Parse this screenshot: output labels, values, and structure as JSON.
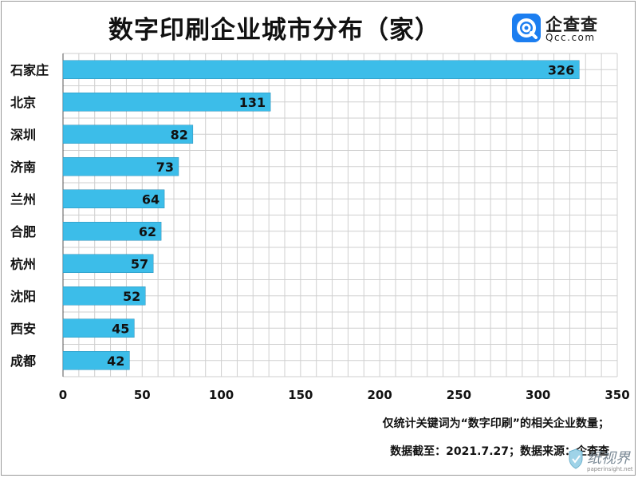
{
  "header": {
    "title": "数字印刷企业城市分布（家）",
    "brand": "企查查",
    "brand_domain": "Qcc.com"
  },
  "footer": {
    "note_line1": "仅统计关键词为“数字印刷”的相关企业数量；",
    "note_line2": "数据截至：2021.7.27；数据来源：企查查"
  },
  "watermark": {
    "text": "纸视界",
    "url": "paperinsight.net"
  },
  "colors": {
    "bar": "#3cbde9",
    "bar_stroke": "#2a8fb8",
    "grid": "#cfcfcf",
    "text": "#111111",
    "brand": "#1c7ef0"
  },
  "chart_data": {
    "type": "bar",
    "orientation": "horizontal",
    "categories": [
      "石家庄",
      "北京",
      "深圳",
      "济南",
      "兰州",
      "合肥",
      "杭州",
      "沈阳",
      "西安",
      "成都"
    ],
    "values": [
      326,
      131,
      82,
      73,
      64,
      62,
      57,
      52,
      45,
      42
    ],
    "xlim": [
      0,
      350
    ],
    "xticks": [
      0,
      50,
      100,
      150,
      200,
      250,
      300,
      350
    ],
    "grid": true,
    "title": "数字印刷企业城市分布（家）"
  }
}
